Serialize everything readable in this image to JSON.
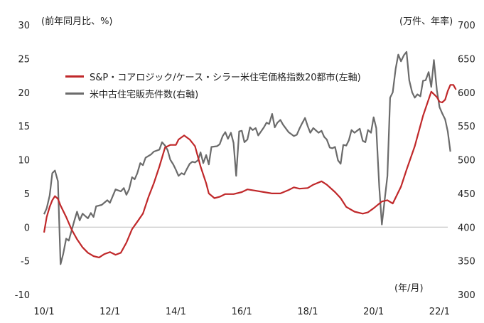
{
  "chart_data": {
    "type": "line",
    "left_axis_label": "(前年同月比、%)",
    "right_axis_label": "(万件、年率)",
    "x_axis_unit": "(年/月)",
    "x_ticks": [
      "10/1",
      "12/1",
      "14/1",
      "16/1",
      "18/1",
      "20/1",
      "22/1"
    ],
    "x_tick_values": [
      2010.0,
      2012.0,
      2014.0,
      2016.0,
      2018.0,
      2020.0,
      2022.0
    ],
    "xlim": [
      2010.0,
      2022.25
    ],
    "ylim_left": [
      -10,
      30
    ],
    "ylim_right": [
      300,
      700
    ],
    "yticks_left": [
      -10,
      -5,
      0,
      5,
      10,
      15,
      20,
      25,
      30
    ],
    "yticks_right": [
      300,
      350,
      400,
      450,
      500,
      550,
      600,
      650,
      700
    ],
    "colors": {
      "caseshiller": "#c0282a",
      "home_sales": "#6b6b6b"
    },
    "series": [
      {
        "name": "S&P・コアロジック/ケース・シラー米住宅価格指数20都市(左軸)",
        "axis": "left",
        "points": [
          [
            2010.0,
            -0.8
          ],
          [
            2010.08,
            1.5
          ],
          [
            2010.17,
            3.0
          ],
          [
            2010.25,
            4.0
          ],
          [
            2010.33,
            4.6
          ],
          [
            2010.42,
            4.2
          ],
          [
            2010.5,
            3.2
          ],
          [
            2010.67,
            1.5
          ],
          [
            2010.83,
            -0.3
          ],
          [
            2011.0,
            -1.8
          ],
          [
            2011.17,
            -3.0
          ],
          [
            2011.33,
            -3.8
          ],
          [
            2011.5,
            -4.3
          ],
          [
            2011.67,
            -4.5
          ],
          [
            2011.83,
            -4.0
          ],
          [
            2012.0,
            -3.7
          ],
          [
            2012.17,
            -4.1
          ],
          [
            2012.33,
            -3.8
          ],
          [
            2012.5,
            -2.3
          ],
          [
            2012.67,
            -0.3
          ],
          [
            2012.83,
            0.8
          ],
          [
            2013.0,
            2.0
          ],
          [
            2013.17,
            4.5
          ],
          [
            2013.33,
            6.5
          ],
          [
            2013.5,
            9.0
          ],
          [
            2013.67,
            11.8
          ],
          [
            2013.83,
            12.2
          ],
          [
            2014.0,
            12.2
          ],
          [
            2014.08,
            13.0
          ],
          [
            2014.25,
            13.6
          ],
          [
            2014.42,
            13.0
          ],
          [
            2014.58,
            12.0
          ],
          [
            2014.75,
            9.0
          ],
          [
            2014.92,
            6.5
          ],
          [
            2015.0,
            5.0
          ],
          [
            2015.17,
            4.3
          ],
          [
            2015.33,
            4.5
          ],
          [
            2015.5,
            4.9
          ],
          [
            2015.75,
            4.9
          ],
          [
            2016.0,
            5.2
          ],
          [
            2016.17,
            5.6
          ],
          [
            2016.42,
            5.4
          ],
          [
            2016.67,
            5.2
          ],
          [
            2016.92,
            5.0
          ],
          [
            2017.17,
            5.0
          ],
          [
            2017.42,
            5.5
          ],
          [
            2017.58,
            5.9
          ],
          [
            2017.75,
            5.7
          ],
          [
            2018.0,
            5.8
          ],
          [
            2018.17,
            6.3
          ],
          [
            2018.42,
            6.8
          ],
          [
            2018.58,
            6.3
          ],
          [
            2018.83,
            5.2
          ],
          [
            2019.0,
            4.3
          ],
          [
            2019.17,
            3.0
          ],
          [
            2019.42,
            2.3
          ],
          [
            2019.67,
            2.0
          ],
          [
            2019.83,
            2.2
          ],
          [
            2020.0,
            2.8
          ],
          [
            2020.25,
            3.8
          ],
          [
            2020.42,
            4.0
          ],
          [
            2020.58,
            3.5
          ],
          [
            2020.83,
            6.0
          ],
          [
            2021.0,
            8.5
          ],
          [
            2021.25,
            12.0
          ],
          [
            2021.5,
            16.5
          ],
          [
            2021.75,
            20.1
          ],
          [
            2021.92,
            19.3
          ],
          [
            2022.0,
            18.6
          ],
          [
            2022.08,
            18.5
          ],
          [
            2022.17,
            18.9
          ],
          [
            2022.25,
            20.2
          ],
          [
            2022.33,
            21.1
          ],
          [
            2022.42,
            21.1
          ],
          [
            2022.5,
            20.4
          ]
        ]
      },
      {
        "name": "米中古住宅販売件数(右軸)",
        "axis": "right",
        "points": [
          [
            2010.0,
            419
          ],
          [
            2010.08,
            428
          ],
          [
            2010.17,
            447
          ],
          [
            2010.25,
            480
          ],
          [
            2010.33,
            484
          ],
          [
            2010.42,
            468
          ],
          [
            2010.5,
            345
          ],
          [
            2010.58,
            360
          ],
          [
            2010.67,
            383
          ],
          [
            2010.75,
            380
          ],
          [
            2010.92,
            410
          ],
          [
            2011.0,
            423
          ],
          [
            2011.08,
            410
          ],
          [
            2011.17,
            420
          ],
          [
            2011.33,
            413
          ],
          [
            2011.42,
            421
          ],
          [
            2011.5,
            415
          ],
          [
            2011.58,
            431
          ],
          [
            2011.75,
            433
          ],
          [
            2011.92,
            440
          ],
          [
            2012.0,
            436
          ],
          [
            2012.17,
            456
          ],
          [
            2012.33,
            453
          ],
          [
            2012.42,
            458
          ],
          [
            2012.5,
            448
          ],
          [
            2012.58,
            456
          ],
          [
            2012.67,
            474
          ],
          [
            2012.75,
            471
          ],
          [
            2012.83,
            480
          ],
          [
            2012.92,
            495
          ],
          [
            2013.0,
            492
          ],
          [
            2013.08,
            503
          ],
          [
            2013.25,
            508
          ],
          [
            2013.33,
            512
          ],
          [
            2013.5,
            515
          ],
          [
            2013.58,
            526
          ],
          [
            2013.67,
            521
          ],
          [
            2013.75,
            514
          ],
          [
            2013.83,
            500
          ],
          [
            2013.92,
            493
          ],
          [
            2014.0,
            485
          ],
          [
            2014.08,
            476
          ],
          [
            2014.17,
            480
          ],
          [
            2014.25,
            478
          ],
          [
            2014.33,
            486
          ],
          [
            2014.42,
            494
          ],
          [
            2014.5,
            497
          ],
          [
            2014.58,
            496
          ],
          [
            2014.67,
            499
          ],
          [
            2014.75,
            511
          ],
          [
            2014.83,
            495
          ],
          [
            2014.92,
            507
          ],
          [
            2015.0,
            493
          ],
          [
            2015.08,
            519
          ],
          [
            2015.25,
            520
          ],
          [
            2015.33,
            523
          ],
          [
            2015.42,
            535
          ],
          [
            2015.5,
            541
          ],
          [
            2015.58,
            531
          ],
          [
            2015.67,
            540
          ],
          [
            2015.75,
            525
          ],
          [
            2015.83,
            476
          ],
          [
            2015.92,
            542
          ],
          [
            2016.0,
            543
          ],
          [
            2016.08,
            526
          ],
          [
            2016.17,
            530
          ],
          [
            2016.25,
            548
          ],
          [
            2016.33,
            544
          ],
          [
            2016.42,
            547
          ],
          [
            2016.5,
            536
          ],
          [
            2016.67,
            548
          ],
          [
            2016.75,
            555
          ],
          [
            2016.83,
            553
          ],
          [
            2016.92,
            568
          ],
          [
            2017.0,
            548
          ],
          [
            2017.08,
            555
          ],
          [
            2017.17,
            559
          ],
          [
            2017.25,
            552
          ],
          [
            2017.42,
            541
          ],
          [
            2017.5,
            538
          ],
          [
            2017.58,
            535
          ],
          [
            2017.67,
            537
          ],
          [
            2017.75,
            546
          ],
          [
            2017.83,
            554
          ],
          [
            2017.92,
            562
          ],
          [
            2018.0,
            550
          ],
          [
            2018.08,
            540
          ],
          [
            2018.17,
            547
          ],
          [
            2018.33,
            540
          ],
          [
            2018.42,
            543
          ],
          [
            2018.5,
            534
          ],
          [
            2018.58,
            530
          ],
          [
            2018.67,
            518
          ],
          [
            2018.75,
            517
          ],
          [
            2018.83,
            519
          ],
          [
            2018.92,
            499
          ],
          [
            2019.0,
            494
          ],
          [
            2019.08,
            522
          ],
          [
            2019.17,
            521
          ],
          [
            2019.25,
            529
          ],
          [
            2019.33,
            544
          ],
          [
            2019.42,
            540
          ],
          [
            2019.5,
            543
          ],
          [
            2019.58,
            546
          ],
          [
            2019.67,
            528
          ],
          [
            2019.75,
            526
          ],
          [
            2019.83,
            544
          ],
          [
            2019.92,
            540
          ],
          [
            2020.0,
            563
          ],
          [
            2020.08,
            547
          ],
          [
            2020.17,
            460
          ],
          [
            2020.25,
            404
          ],
          [
            2020.42,
            476
          ],
          [
            2020.5,
            592
          ],
          [
            2020.58,
            600
          ],
          [
            2020.67,
            635
          ],
          [
            2020.75,
            656
          ],
          [
            2020.83,
            646
          ],
          [
            2020.92,
            655
          ],
          [
            2021.0,
            660
          ],
          [
            2021.08,
            618
          ],
          [
            2021.17,
            600
          ],
          [
            2021.25,
            592
          ],
          [
            2021.33,
            597
          ],
          [
            2021.42,
            594
          ],
          [
            2021.5,
            617
          ],
          [
            2021.58,
            618
          ],
          [
            2021.67,
            630
          ],
          [
            2021.75,
            608
          ],
          [
            2021.83,
            648
          ],
          [
            2021.92,
            603
          ],
          [
            2022.0,
            578
          ],
          [
            2022.08,
            569
          ],
          [
            2022.17,
            560
          ],
          [
            2022.25,
            542
          ],
          [
            2022.33,
            512
          ]
        ]
      }
    ]
  }
}
